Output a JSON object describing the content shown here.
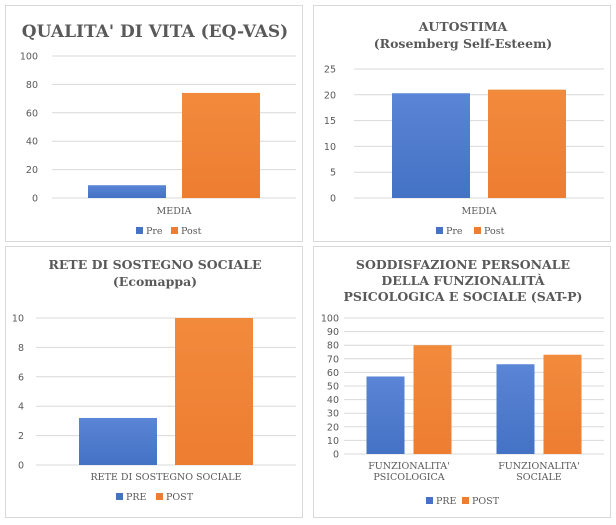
{
  "colors": {
    "pre": "#4472c4",
    "post": "#ed7d31",
    "pre_light": "#5b85d6",
    "post_light": "#f28a3c"
  },
  "chart_data": [
    {
      "type": "bar",
      "title": [
        "QUALITA' DI VITA (EQ-VAS)"
      ],
      "categories": [
        [
          "MEDIA"
        ]
      ],
      "series": [
        {
          "name": "Pre",
          "values": [
            9
          ]
        },
        {
          "name": "Post",
          "values": [
            74
          ]
        }
      ],
      "ylim": [
        0,
        100
      ],
      "yticks": [
        0,
        20,
        40,
        60,
        80,
        100
      ],
      "grid": true,
      "legend": "bottom"
    },
    {
      "type": "bar",
      "title": [
        "AUTOSTIMA",
        "(Rosemberg Self-Esteem)"
      ],
      "categories": [
        [
          "MEDIA"
        ]
      ],
      "series": [
        {
          "name": "Pre",
          "values": [
            20.3
          ]
        },
        {
          "name": "Post",
          "values": [
            21
          ]
        }
      ],
      "ylim": [
        0,
        25
      ],
      "yticks": [
        0,
        5,
        10,
        15,
        20,
        25
      ],
      "grid": true,
      "legend": "bottom"
    },
    {
      "type": "bar",
      "title": [
        "RETE DI SOSTEGNO SOCIALE",
        "(Ecomappa)"
      ],
      "categories": [
        [
          "RETE DI SOSTEGNO SOCIALE"
        ]
      ],
      "series": [
        {
          "name": "PRE",
          "values": [
            3.2
          ]
        },
        {
          "name": "POST",
          "values": [
            10
          ]
        }
      ],
      "ylim": [
        0,
        10
      ],
      "yticks": [
        0,
        2,
        4,
        6,
        8,
        10
      ],
      "grid": true,
      "legend": "bottom"
    },
    {
      "type": "bar",
      "title": [
        "SODDISFAZIONE PERSONALE",
        "DELLA FUNZIONALITÀ",
        "PSICOLOGICA E SOCIALE (SAT-P)"
      ],
      "categories": [
        [
          "FUNZIONALITA'",
          "PSICOLOGICA"
        ],
        [
          "FUNZIONALITA'",
          "SOCIALE"
        ]
      ],
      "series": [
        {
          "name": "PRE",
          "values": [
            57,
            66
          ]
        },
        {
          "name": "POST",
          "values": [
            80,
            73
          ]
        }
      ],
      "ylim": [
        0,
        100
      ],
      "yticks": [
        0,
        10,
        20,
        30,
        40,
        50,
        60,
        70,
        80,
        90,
        100
      ],
      "grid": true,
      "legend": "bottom"
    }
  ]
}
